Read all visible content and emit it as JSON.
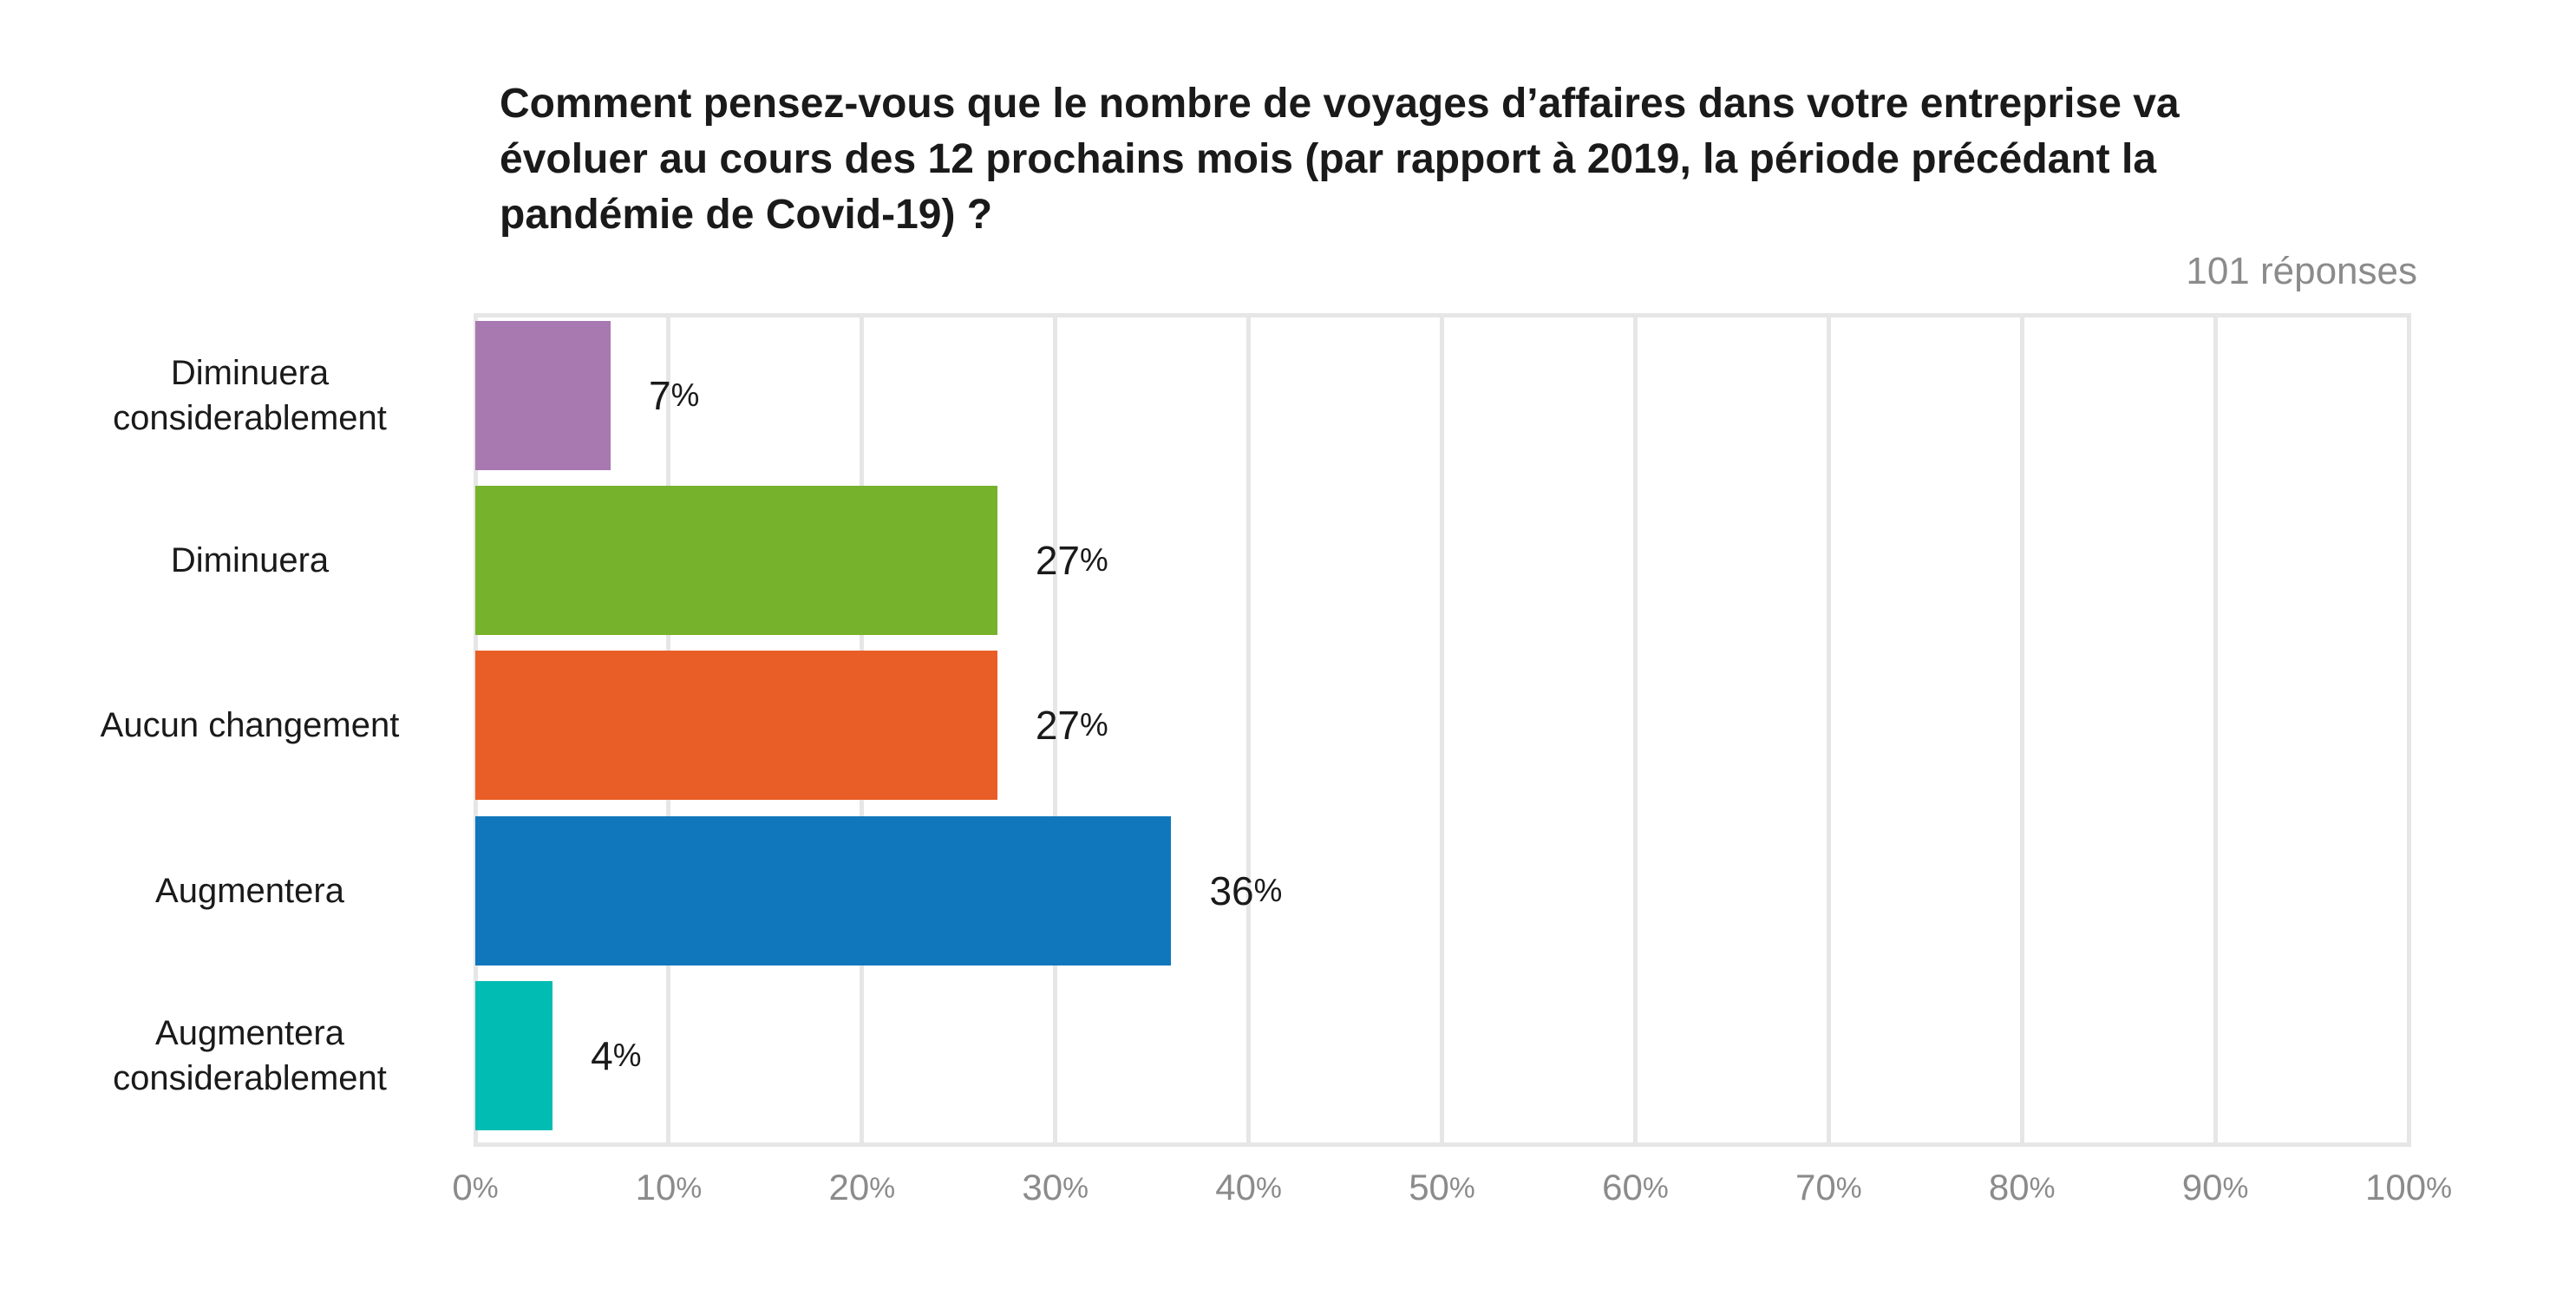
{
  "chart_data": {
    "type": "bar",
    "orientation": "horizontal",
    "title": "Comment pensez-vous que le nombre de voyages d’affaires dans votre entreprise va évoluer au cours des 12 prochains mois (par rapport à 2019, la période précédant la pandémie de Covid-19) ?",
    "title_lines": [
      "Comment pensez-vous que le nombre de voyages d’affaires dans votre entreprise va",
      "évoluer au cours des 12 prochains mois (par rapport à 2019, la période précédant la",
      "pandémie de Covid-19) ?"
    ],
    "subtitle": "101 réponses",
    "categories": [
      "Diminuera considerablement",
      "Diminuera",
      "Aucun changement",
      "Augmentera",
      "Augmentera considerablement"
    ],
    "values": [
      7,
      27,
      27,
      36,
      4
    ],
    "value_labels": [
      "7%",
      "27%",
      "27%",
      "36%",
      "4%"
    ],
    "bar_colors": [
      "#a878b1",
      "#76b22b",
      "#e95e26",
      "#1077bc",
      "#00bcb3"
    ],
    "x_ticks": [
      "0%",
      "10%",
      "20%",
      "30%",
      "40%",
      "50%",
      "60%",
      "70%",
      "80%",
      "90%",
      "100%"
    ],
    "xlim": [
      0,
      100
    ],
    "grid": "vertical",
    "grid_color": "#e6e6e6",
    "tick_color": "#8b8b8b",
    "label_color": "#1a1a1a",
    "legend": "none"
  }
}
